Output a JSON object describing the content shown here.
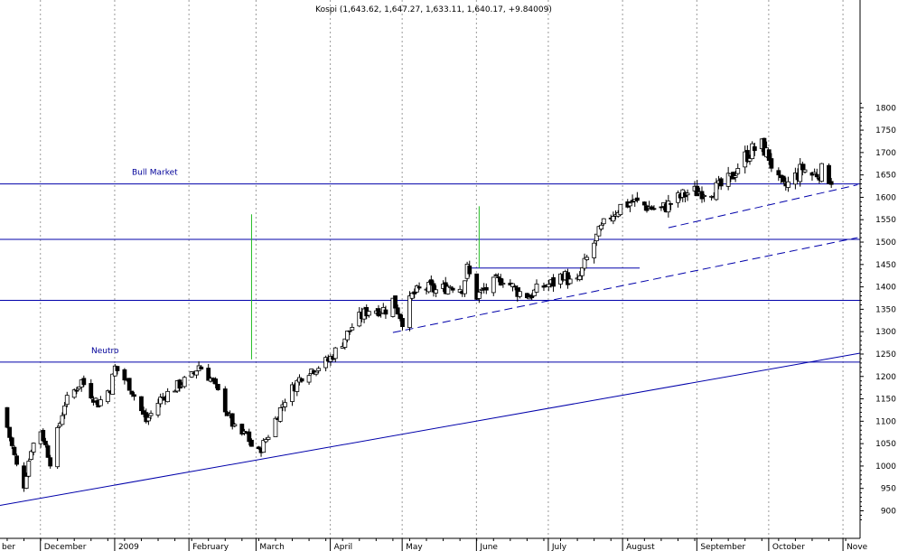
{
  "chart_data": {
    "type": "candlestick",
    "title": "Kospi (1,643.62, 1,647.27, 1,633.11, 1,640.17, +9.84009)",
    "ylim": [
      870,
      1820
    ],
    "y_ticks": [
      900,
      950,
      1000,
      1050,
      1100,
      1150,
      1200,
      1250,
      1300,
      1350,
      1400,
      1450,
      1500,
      1550,
      1600,
      1650,
      1700,
      1750,
      1800
    ],
    "x_labels": [
      {
        "label": "ber",
        "day": -16
      },
      {
        "label": "December",
        "day": 1
      },
      {
        "label": "2009",
        "day": 32
      },
      {
        "label": "February",
        "day": 63
      },
      {
        "label": "March",
        "day": 91
      },
      {
        "label": "April",
        "day": 122
      },
      {
        "label": "May",
        "day": 152
      },
      {
        "label": "June",
        "day": 183
      },
      {
        "label": "July",
        "day": 213
      },
      {
        "label": "August",
        "day": 244
      },
      {
        "label": "September",
        "day": 275
      },
      {
        "label": "October",
        "day": 305
      },
      {
        "label": "Nove",
        "day": 336
      }
    ],
    "grid": "dotted vertical at month starts",
    "horizontal_levels": [
      1630,
      1506,
      1370,
      1232
    ],
    "annotations": [
      {
        "text": "Bull Market",
        "level": 1630
      },
      {
        "text": "Neutro",
        "level": 1232
      }
    ],
    "trendlines": [
      {
        "style": "solid",
        "from": [
          -17,
          912
        ],
        "to": [
          342,
          1252
        ]
      },
      {
        "style": "dashed",
        "from": [
          147,
          1298
        ],
        "to": [
          341,
          1510
        ]
      },
      {
        "style": "dashed",
        "from": [
          262,
          1532
        ],
        "to": [
          341,
          1628
        ]
      }
    ],
    "range_box": {
      "from_day": 179,
      "to_day": 250,
      "level": 1442
    },
    "green_lines": [
      {
        "day": 88,
        "low": 1238,
        "high": 1562
      },
      {
        "day": 183,
        "low": 1442,
        "high": 1580
      }
    ],
    "anchors": [
      [
        -16,
        1130
      ],
      [
        -10,
        1000
      ],
      [
        -8,
        930
      ],
      [
        -4,
        1040
      ],
      [
        0,
        1080
      ],
      [
        4,
        1010
      ],
      [
        10,
        1140
      ],
      [
        17,
        1190
      ],
      [
        24,
        1140
      ],
      [
        29,
        1175
      ],
      [
        31,
        1220
      ],
      [
        37,
        1180
      ],
      [
        44,
        1100
      ],
      [
        50,
        1150
      ],
      [
        56,
        1175
      ],
      [
        63,
        1200
      ],
      [
        66,
        1225
      ],
      [
        71,
        1195
      ],
      [
        77,
        1130
      ],
      [
        82,
        1070
      ],
      [
        86,
        1070
      ],
      [
        90,
        1020
      ],
      [
        95,
        1070
      ],
      [
        102,
        1150
      ],
      [
        110,
        1210
      ],
      [
        115,
        1220
      ],
      [
        120,
        1235
      ],
      [
        125,
        1270
      ],
      [
        131,
        1320
      ],
      [
        137,
        1350
      ],
      [
        144,
        1350
      ],
      [
        147,
        1370
      ],
      [
        151,
        1325
      ],
      [
        155,
        1380
      ],
      [
        160,
        1400
      ],
      [
        166,
        1390
      ],
      [
        171,
        1405
      ],
      [
        176,
        1398
      ],
      [
        178,
        1440
      ],
      [
        182,
        1380
      ],
      [
        187,
        1400
      ],
      [
        193,
        1420
      ],
      [
        199,
        1390
      ],
      [
        204,
        1380
      ],
      [
        209,
        1400
      ],
      [
        215,
        1410
      ],
      [
        218,
        1430
      ],
      [
        223,
        1395
      ],
      [
        227,
        1450
      ],
      [
        232,
        1510
      ],
      [
        237,
        1555
      ],
      [
        242,
        1580
      ],
      [
        247,
        1590
      ],
      [
        252,
        1582
      ],
      [
        258,
        1570
      ],
      [
        264,
        1590
      ],
      [
        270,
        1610
      ],
      [
        277,
        1615
      ],
      [
        283,
        1620
      ],
      [
        288,
        1640
      ],
      [
        292,
        1680
      ],
      [
        297,
        1705
      ],
      [
        301,
        1715
      ],
      [
        304,
        1690
      ],
      [
        307,
        1640
      ],
      [
        310,
        1620
      ],
      [
        314,
        1640
      ],
      [
        318,
        1665
      ],
      [
        322,
        1650
      ],
      [
        326,
        1658
      ],
      [
        330,
        1640
      ]
    ]
  }
}
